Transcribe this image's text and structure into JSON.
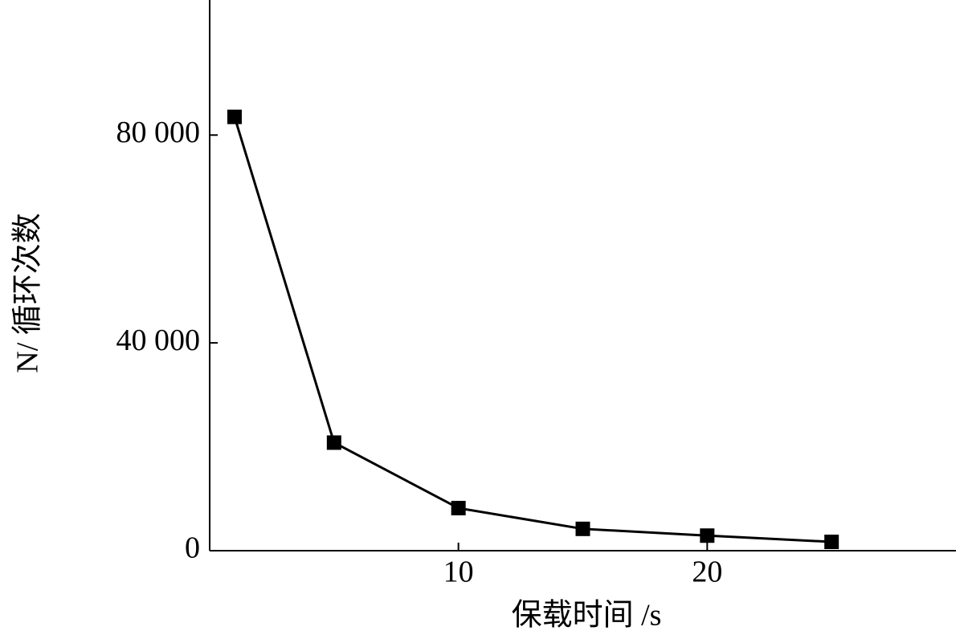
{
  "chart_data": {
    "type": "line",
    "xlabel": "保载时间 /s",
    "ylabel": "N/ 循环次数",
    "x": [
      1,
      5,
      10,
      15,
      20,
      25
    ],
    "series": [
      {
        "color": "#000000",
        "values": [
          83500,
          20800,
          8200,
          4200,
          2900,
          1700
        ]
      }
    ],
    "xlim": [
      0,
      30
    ],
    "xticks": [
      10,
      20
    ],
    "ylim": [
      0,
      106000
    ],
    "yticks": [
      0,
      {
        "value": 40000,
        "label": "40 000"
      },
      {
        "value": 80000,
        "label": "80 000"
      }
    ],
    "grid": false
  }
}
